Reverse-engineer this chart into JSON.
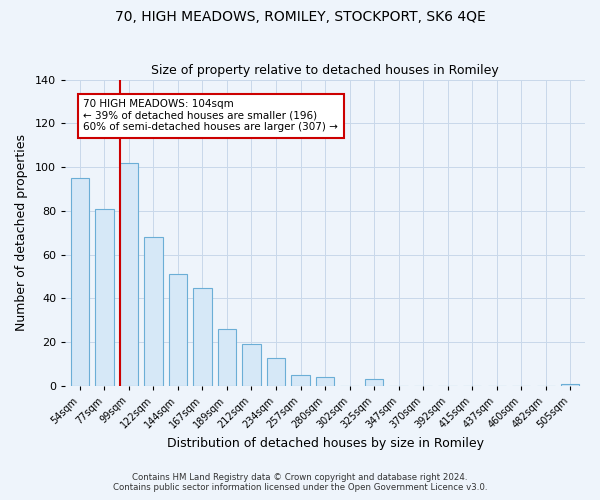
{
  "title": "70, HIGH MEADOWS, ROMILEY, STOCKPORT, SK6 4QE",
  "subtitle": "Size of property relative to detached houses in Romiley",
  "xlabel": "Distribution of detached houses by size in Romiley",
  "ylabel": "Number of detached properties",
  "footer_lines": [
    "Contains HM Land Registry data © Crown copyright and database right 2024.",
    "Contains public sector information licensed under the Open Government Licence v3.0."
  ],
  "bar_labels": [
    "54sqm",
    "77sqm",
    "99sqm",
    "122sqm",
    "144sqm",
    "167sqm",
    "189sqm",
    "212sqm",
    "234sqm",
    "257sqm",
    "280sqm",
    "302sqm",
    "325sqm",
    "347sqm",
    "370sqm",
    "392sqm",
    "415sqm",
    "437sqm",
    "460sqm",
    "482sqm",
    "505sqm"
  ],
  "bar_values": [
    95,
    81,
    102,
    68,
    51,
    45,
    26,
    19,
    13,
    5,
    4,
    0,
    3,
    0,
    0,
    0,
    0,
    0,
    0,
    0,
    1
  ],
  "bar_color": "#d6e8f7",
  "bar_edge_color": "#6baed6",
  "grid_color": "#c8d8ea",
  "background_color": "#eef4fb",
  "ylim": [
    0,
    140
  ],
  "yticks": [
    0,
    20,
    40,
    60,
    80,
    100,
    120,
    140
  ],
  "vline_x_index": 2,
  "vline_color": "#cc0000",
  "annotation_title": "70 HIGH MEADOWS: 104sqm",
  "annotation_line1": "← 39% of detached houses are smaller (196)",
  "annotation_line2": "60% of semi-detached houses are larger (307) →",
  "annotation_box_color": "#ffffff",
  "annotation_box_edge": "#cc0000",
  "title_fontsize": 10,
  "subtitle_fontsize": 9,
  "bar_width": 0.75
}
